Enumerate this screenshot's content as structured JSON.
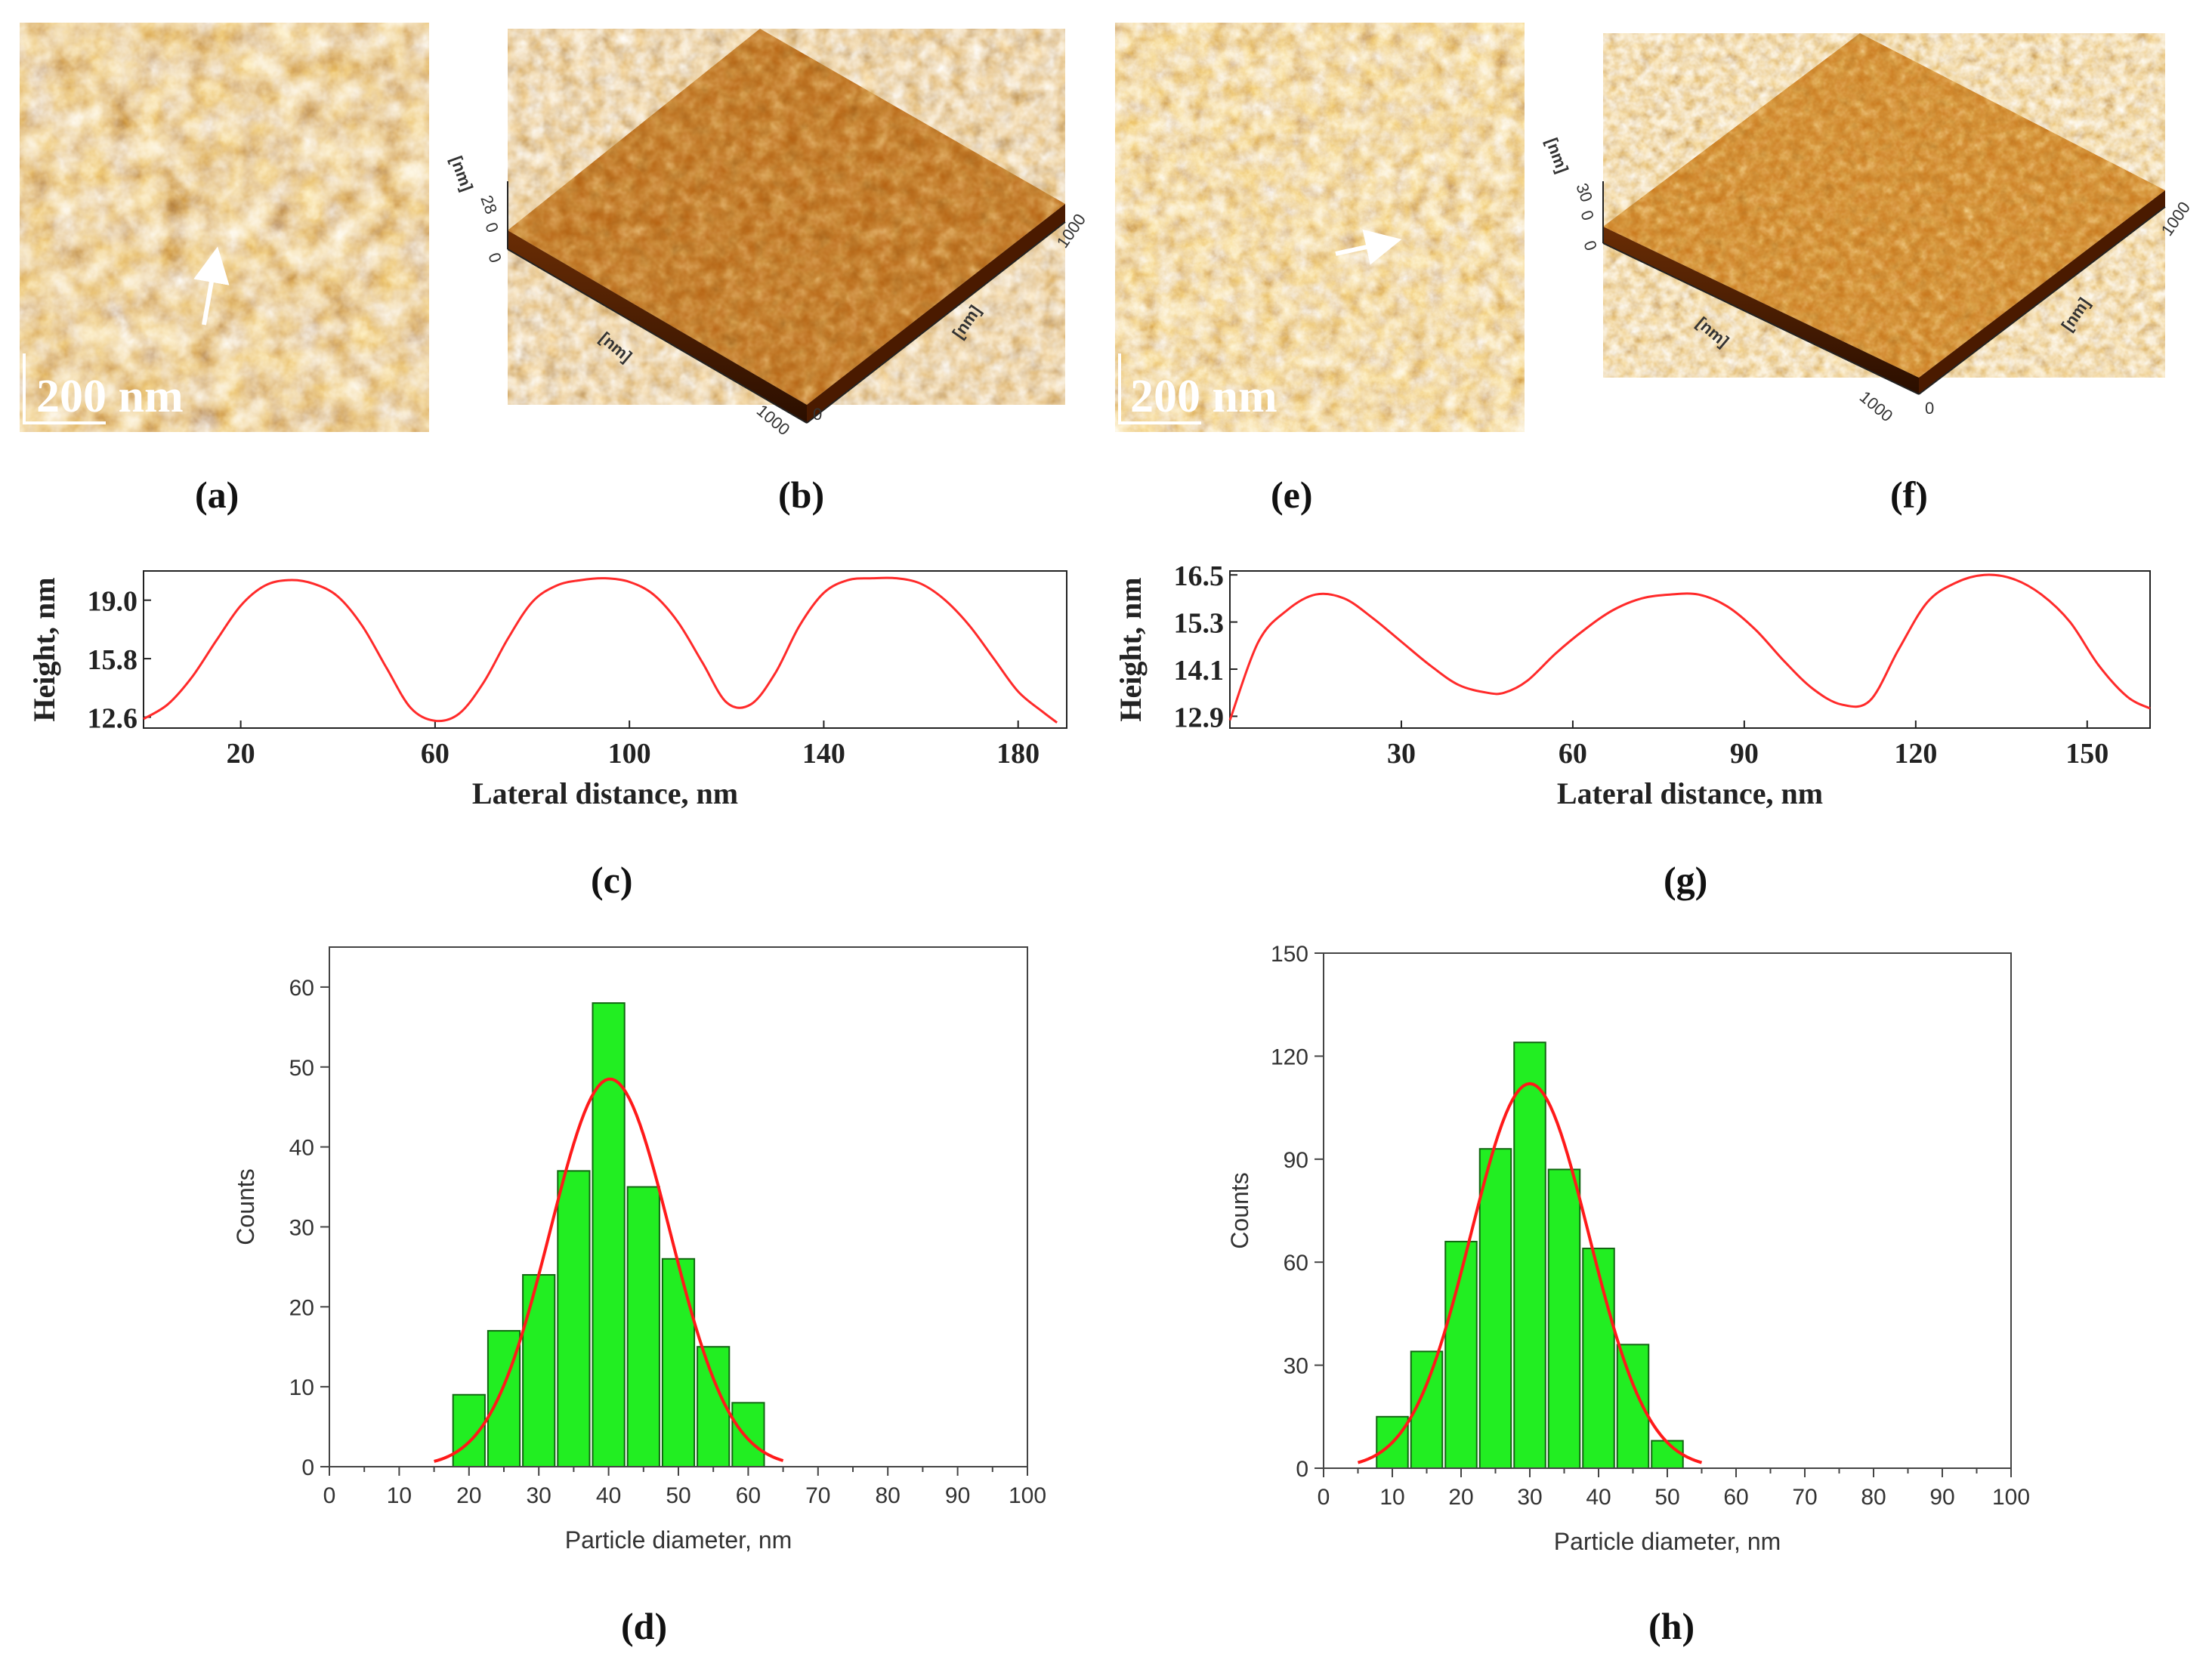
{
  "figure": {
    "colors": {
      "afm_light": "#f6d98a",
      "afm_mid": "#c46a12",
      "afm_dark": "#3a1400",
      "profile_line": "#ff2a2a",
      "bar_fill": "#22ee22",
      "bar_stroke": "#116611",
      "fit_line": "#ff1a1a"
    },
    "panels": {
      "a": {
        "label": "(a)",
        "scale_bar": "200 nm",
        "arrow": "up"
      },
      "b": {
        "label": "(b)",
        "z_unit": "[nm]",
        "z_ticks": [
          "28",
          "0"
        ],
        "x_unit": "[nm]",
        "y_unit": "[nm]",
        "x_max": "1000",
        "y_max": "1000",
        "origin": "0"
      },
      "e": {
        "label": "(e)",
        "scale_bar": "200 nm",
        "arrow": "right"
      },
      "f": {
        "label": "(f)",
        "z_unit": "[nm]",
        "z_ticks": [
          "30",
          "0"
        ],
        "x_unit": "[nm]",
        "y_unit": "[nm]",
        "x_max": "1000",
        "y_max": "1000",
        "origin": "0"
      },
      "c": {
        "label": "(c)"
      },
      "g": {
        "label": "(g)"
      },
      "d": {
        "label": "(d)"
      },
      "h": {
        "label": "(h)"
      }
    }
  },
  "chart_data": [
    {
      "id": "c",
      "type": "line",
      "xlabel": "Lateral distance, nm",
      "ylabel": "Height, nm",
      "xlim": [
        0,
        190
      ],
      "ylim": [
        12.0,
        20.6
      ],
      "xticks": [
        20,
        60,
        100,
        140,
        180
      ],
      "yticks": [
        12.6,
        15.8,
        19.0
      ],
      "ytick_labels": [
        "12.6",
        "15.8",
        "19.0"
      ],
      "x": [
        0,
        5,
        10,
        15,
        20,
        25,
        30,
        35,
        40,
        45,
        50,
        55,
        60,
        65,
        70,
        75,
        80,
        85,
        90,
        95,
        100,
        105,
        110,
        115,
        120,
        125,
        130,
        135,
        140,
        145,
        150,
        155,
        160,
        165,
        170,
        175,
        180,
        185,
        188
      ],
      "y": [
        12.5,
        13.3,
        14.8,
        16.8,
        18.7,
        19.8,
        20.1,
        19.9,
        19.2,
        17.6,
        15.3,
        13.1,
        12.4,
        12.8,
        14.5,
        16.9,
        18.9,
        19.8,
        20.1,
        20.2,
        20.0,
        19.3,
        17.8,
        15.6,
        13.4,
        13.3,
        15.0,
        17.6,
        19.4,
        20.1,
        20.2,
        20.2,
        19.9,
        19.0,
        17.6,
        15.8,
        14.0,
        12.9,
        12.3
      ]
    },
    {
      "id": "g",
      "type": "line",
      "xlabel": "Lateral distance, nm",
      "ylabel": "Height, nm",
      "xlim": [
        0,
        161
      ],
      "ylim": [
        12.6,
        16.6
      ],
      "xticks": [
        30,
        60,
        90,
        120,
        150
      ],
      "yticks": [
        12.9,
        14.1,
        15.3,
        16.5
      ],
      "ytick_labels": [
        "12.9",
        "14.1",
        "15.3",
        "16.5"
      ],
      "x": [
        0,
        5,
        10,
        15,
        20,
        25,
        30,
        35,
        40,
        45,
        48,
        52,
        57,
        62,
        67,
        72,
        77,
        82,
        87,
        92,
        97,
        102,
        107,
        112,
        117,
        122,
        127,
        132,
        137,
        142,
        147,
        152,
        157,
        161
      ],
      "y": [
        12.8,
        14.8,
        15.6,
        16.0,
        15.9,
        15.4,
        14.8,
        14.2,
        13.7,
        13.5,
        13.5,
        13.8,
        14.5,
        15.1,
        15.6,
        15.9,
        16.0,
        16.0,
        15.7,
        15.1,
        14.3,
        13.6,
        13.2,
        13.3,
        14.6,
        15.8,
        16.3,
        16.5,
        16.4,
        16.0,
        15.3,
        14.2,
        13.4,
        13.1
      ]
    },
    {
      "id": "d",
      "type": "bar",
      "xlabel": "Particle diameter, nm",
      "ylabel": "Counts",
      "xlim": [
        0,
        100
      ],
      "ylim": [
        0,
        65
      ],
      "xticks": [
        0,
        10,
        20,
        30,
        40,
        50,
        60,
        70,
        80,
        90,
        100
      ],
      "yticks": [
        0,
        10,
        20,
        30,
        40,
        50,
        60
      ],
      "bin_width": 5,
      "bin_centers": [
        20,
        25,
        30,
        35,
        40,
        45,
        50,
        55,
        60
      ],
      "values": [
        9,
        17,
        24,
        37,
        58,
        35,
        26,
        15,
        8
      ],
      "fit": {
        "type": "gaussian",
        "amplitude": 48.5,
        "mean": 40.2,
        "sigma": 8.6,
        "x_range": [
          15,
          65
        ]
      }
    },
    {
      "id": "h",
      "type": "bar",
      "xlabel": "Particle diameter, nm",
      "ylabel": "Counts",
      "xlim": [
        0,
        100
      ],
      "ylim": [
        0,
        150
      ],
      "xticks": [
        0,
        10,
        20,
        30,
        40,
        50,
        60,
        70,
        80,
        90,
        100
      ],
      "yticks": [
        0,
        30,
        60,
        90,
        120,
        150
      ],
      "bin_width": 5,
      "bin_centers": [
        10,
        15,
        20,
        25,
        30,
        35,
        40,
        45,
        50
      ],
      "values": [
        15,
        34,
        66,
        93,
        124,
        87,
        64,
        36,
        8
      ],
      "fit": {
        "type": "gaussian",
        "amplitude": 112,
        "mean": 30,
        "sigma": 8.6,
        "x_range": [
          5,
          55
        ]
      }
    }
  ]
}
